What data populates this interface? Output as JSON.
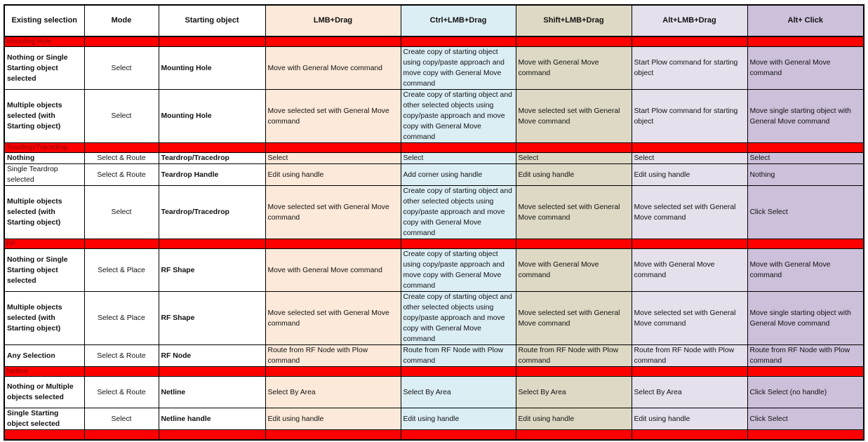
{
  "colors": {
    "group_row": "#ff0000",
    "lmb": "#fce9d9",
    "ctrl": "#dbeef4",
    "shift": "#ddd9c4",
    "alt": "#e5e0ec",
    "alt_click": "#ccc0da"
  },
  "headers": [
    "Existing selection",
    "Mode",
    "Starting object",
    "LMB+Drag",
    "Ctrl+LMB+Drag",
    "Shift+LMB+Drag",
    "Alt+LMB+Drag",
    "Alt+ Click"
  ],
  "groups": [
    {
      "name": "Mounting Hole",
      "rows": [
        {
          "selection": "Nothing or Single Starting object selected",
          "mode": "Select",
          "start": "Mounting Hole",
          "actions": [
            "Move with General Move command",
            "Create copy of starting object using copy/paste approach and move copy with General Move command",
            "Move with General Move command",
            "Start Plow command for starting object",
            "Move with General Move command"
          ]
        },
        {
          "selection": "Multiple objects selected (with Starting object)",
          "mode": "Select",
          "start": "Mounting Hole",
          "actions": [
            "Move selected set with General Move command",
            "Create copy of  starting object and other selected objects using copy/paste approach and move copy with General Move command",
            "Move selected set with General Move command",
            "Start Plow command for starting object",
            "Move single starting object with General Move command"
          ]
        }
      ]
    },
    {
      "name": "Teardrop/Tracedrop",
      "rows": [
        {
          "selection": "Nothing",
          "mode": "Select & Route",
          "start": "Teardrop/Tracedrop",
          "actions": [
            "Select",
            "Select",
            "Select",
            "Select",
            " Select"
          ]
        },
        {
          "selection": " Single Teardrop selected",
          "mode": "Select & Route",
          "start": "Teardrop Handle",
          "actions": [
            "Edit using handle",
            "Add corner using handle",
            "Edit using handle",
            "Edit using handle",
            "Nothing"
          ]
        },
        {
          "selection": "Multiple objects selected (with Starting object)",
          "mode": "Select",
          "start": "Teardrop/Tracedrop",
          "actions": [
            "Move selected set with General Move command",
            "Create copy of  starting object and other selected objects using copy/paste approach and move copy with General Move command",
            "Move selected set with General Move command",
            "Move selected set with General Move command",
            "Click Select"
          ]
        }
      ]
    },
    {
      "name": "RF",
      "rows": [
        {
          "selection": "Nothing or Single Starting object selected",
          "mode": "Select & Place",
          "start": "RF Shape",
          "actions": [
            "Move with General Move command",
            "Create copy of starting object using copy/paste approach and move copy with General Move command",
            "Move with General Move command",
            "Move with General Move command",
            "Move with General Move command"
          ]
        },
        {
          "selection": "Multiple objects selected (with Starting object)",
          "mode": "Select & Place",
          "start": "RF Shape",
          "actions": [
            "Move selected set with General Move command",
            "Create copy of  starting object and other selected objects using copy/paste approach and move copy with General Move command",
            "Move selected set with General Move command",
            "Move selected set with General Move command",
            "Move single starting object with General Move command"
          ]
        },
        {
          "selection": "Any Selection",
          "mode": "Select & Route",
          "start": "RF Node",
          "actions": [
            "Route from RF Node with Plow command",
            "Route from RF Node with Plow command",
            "Route from RF Node with Plow command",
            "Route from RF Node with Plow command",
            "Route from RF Node with Plow command"
          ]
        }
      ]
    },
    {
      "name": "Netline",
      "rows": [
        {
          "selection": "Nothing or Multiple objects selected",
          "mode": "Select & Route",
          "start": "Netline",
          "actions": [
            "Select By Area",
            "Select By Area",
            "Select By Area",
            "Select By Area",
            "Click Select (no handle)"
          ]
        },
        {
          "selection": " Single Starting object  selected",
          "mode": "Select",
          "start": "Netline handle",
          "actions": [
            "Edit using handle",
            "Edit using handle",
            "Edit using handle",
            "Edit using handle",
            "Click Select"
          ]
        }
      ]
    },
    {
      "name": "",
      "rows": []
    }
  ]
}
